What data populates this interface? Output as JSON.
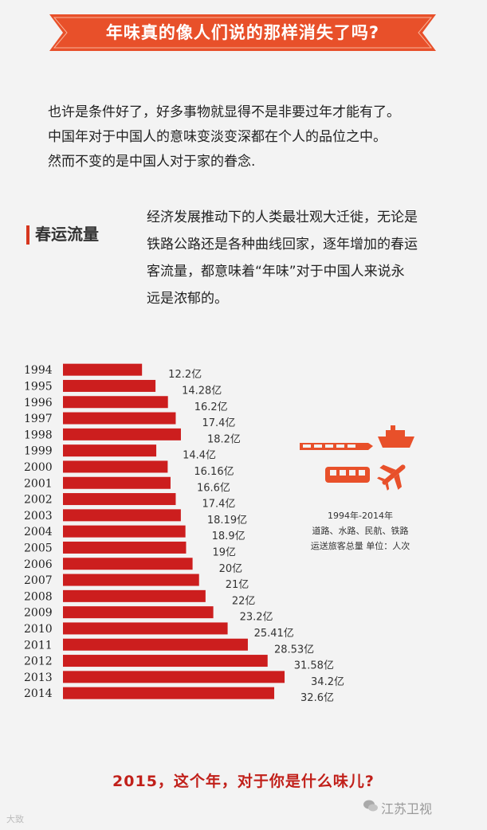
{
  "banner": {
    "title": "年味真的像人们说的那样消失了吗?"
  },
  "intro": {
    "lines": [
      "也许是条件好了，好多事物就显得不是非要过年才能有了。",
      "中国年对于中国人的意味变淡变深都在个人的品位之中。",
      "然而不变的是中国人对于家的眷念."
    ]
  },
  "section": {
    "title": "春运流量",
    "desc_lines": [
      "经济发展推动下的人类最壮观大迁徙，无论是",
      "铁路公路还是各种曲线回家，逐年增加的春运",
      "客流量，都意味着“年味”对于中国人来说永",
      "远是浓郁的。"
    ]
  },
  "legend": {
    "line1": "1994年-2014年",
    "line2": "道路、水路、民航、铁路",
    "line3": "运送旅客总量  单位：人次"
  },
  "icons": [
    "train-icon",
    "ship-icon",
    "bus-icon",
    "plane-icon"
  ],
  "colors": {
    "bar": "#cc1e1e",
    "banner": "#e8502a",
    "footer": "#c1201a"
  },
  "chart_data": {
    "type": "bar",
    "orientation": "horizontal",
    "unit": "亿",
    "categories": [
      "1994",
      "1995",
      "1996",
      "1997",
      "1998",
      "1999",
      "2000",
      "2001",
      "2002",
      "2003",
      "2004",
      "2005",
      "2006",
      "2007",
      "2008",
      "2009",
      "2010",
      "2011",
      "2012",
      "2013",
      "2014"
    ],
    "values": [
      12.2,
      14.28,
      16.2,
      17.4,
      18.2,
      14.4,
      16.16,
      16.6,
      17.4,
      18.19,
      18.9,
      19,
      20,
      21,
      22,
      23.2,
      25.41,
      28.53,
      31.58,
      34.2,
      32.6
    ],
    "labels": [
      "12.2亿",
      "14.28亿",
      "16.2亿",
      "17.4亿",
      "18.2亿",
      "14.4亿",
      "16.16亿",
      "16.6亿",
      "17.4亿",
      "18.19亿",
      "18.9亿",
      "19亿",
      "20亿",
      "21亿",
      "22亿",
      "23.2亿",
      "25.41亿",
      "28.53亿",
      "31.58亿",
      "34.2亿",
      "32.6亿"
    ],
    "grid": false
  },
  "footer": {
    "question": "2015，这个年，对于你是什么味儿?"
  },
  "brand": {
    "name": "江苏卫视"
  },
  "watermark": {
    "text": "大致"
  }
}
